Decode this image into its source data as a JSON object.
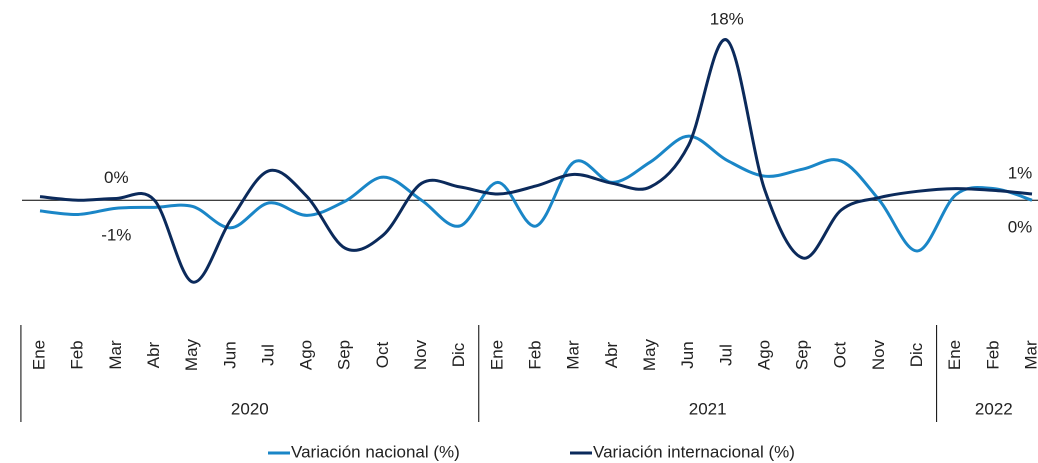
{
  "chart_data": {
    "type": "line",
    "categories": [
      "Ene",
      "Feb",
      "Mar",
      "Abr",
      "May",
      "Jun",
      "Jul",
      "Ago",
      "Sep",
      "Oct",
      "Nov",
      "Dic",
      "Ene",
      "Feb",
      "Mar",
      "Abr",
      "May",
      "Jun",
      "Jul",
      "Ago",
      "Sep",
      "Oct",
      "Nov",
      "Dic",
      "Ene",
      "Feb",
      "Mar"
    ],
    "years": [
      "2020",
      "2021",
      "2022"
    ],
    "ylim": [
      -12,
      22.5
    ],
    "series": [
      {
        "name": "Variación nacional (%)",
        "color": "#1a86c7",
        "values": [
          -1.2,
          -1.6,
          -0.9,
          -0.8,
          -0.7,
          -3.1,
          -0.3,
          -1.7,
          -0.1,
          2.6,
          0,
          -2.9,
          2.0,
          -2.9,
          4.3,
          2.0,
          4.3,
          7.2,
          4.5,
          2.7,
          3.5,
          4.4,
          0,
          -5.7,
          0.6,
          1.3,
          0
        ],
        "value_labels": [
          null,
          null,
          "-1%",
          null,
          null,
          null,
          null,
          null,
          null,
          null,
          null,
          null,
          null,
          null,
          null,
          null,
          null,
          null,
          null,
          null,
          null,
          null,
          null,
          null,
          null,
          null,
          "0%"
        ]
      },
      {
        "name": "Variación internacional (%)",
        "color": "#0b2a5b",
        "values": [
          0.4,
          0,
          0.2,
          0,
          -9.2,
          -2.2,
          3.3,
          0.4,
          -5.4,
          -3.9,
          1.9,
          1.5,
          0.7,
          1.6,
          2.9,
          1.9,
          1.5,
          6.2,
          18,
          1.1,
          -6.5,
          -1.1,
          0.3,
          1.0,
          1.3,
          1.1,
          0.7
        ],
        "value_labels": [
          null,
          null,
          "0%",
          null,
          null,
          null,
          null,
          null,
          null,
          null,
          null,
          null,
          null,
          null,
          null,
          null,
          null,
          null,
          "18%",
          null,
          null,
          null,
          null,
          null,
          null,
          null,
          "1%"
        ]
      }
    ]
  }
}
